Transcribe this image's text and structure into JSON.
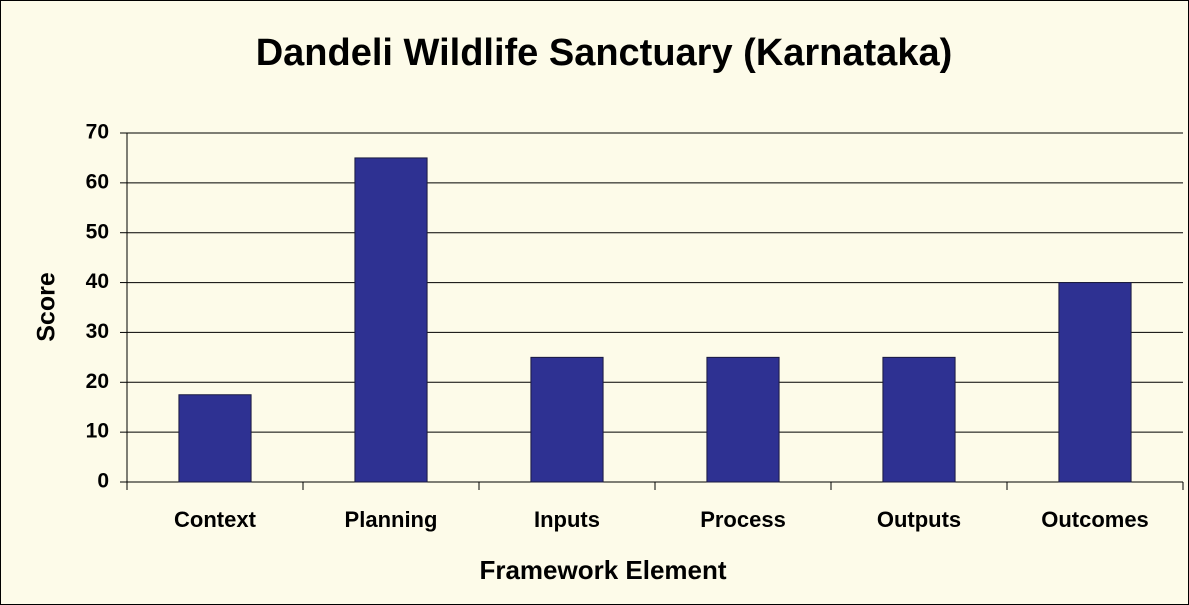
{
  "chart_data": {
    "type": "bar",
    "title": "Dandeli Wildlife Sanctuary (Karnataka)",
    "x_label": "Framework Element",
    "y_label": "Score",
    "categories": [
      "Context",
      "Planning",
      "Inputs",
      "Process",
      "Outputs",
      "Outcomes"
    ],
    "values": [
      17.5,
      65,
      25,
      25,
      25,
      40
    ],
    "color": "#2e3192",
    "ylim": [
      0,
      70
    ],
    "yticks": [
      0,
      10,
      20,
      30,
      40,
      50,
      60,
      70
    ],
    "grid": true
  }
}
